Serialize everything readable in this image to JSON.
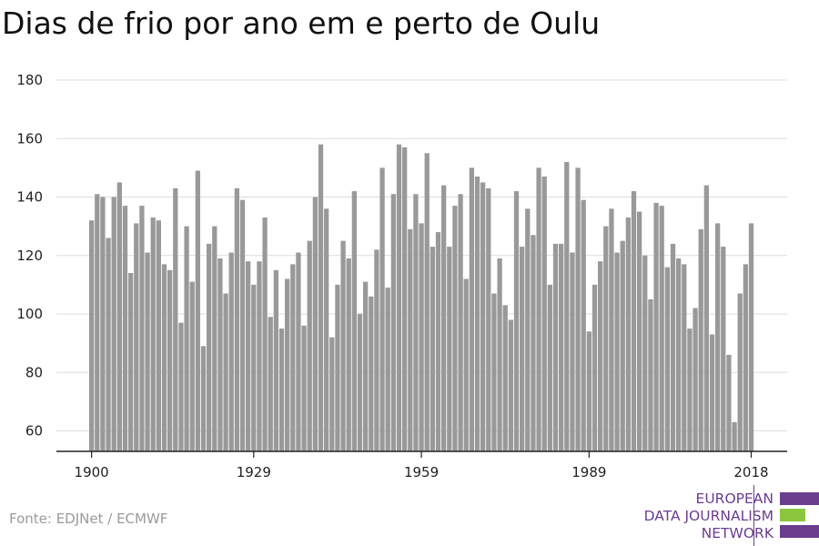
{
  "chart_data": {
    "type": "bar",
    "title": "Dias de frio por ano em e perto de Oulu",
    "xlabel": "",
    "ylabel": "",
    "x_start": 1900,
    "x_end": 2018,
    "x_ticks": [
      "1900",
      "1929",
      "1959",
      "1989",
      "2018"
    ],
    "y_ticks": [
      "60",
      "80",
      "100",
      "120",
      "140",
      "160",
      "180"
    ],
    "ylim": [
      53,
      180
    ],
    "grid": true,
    "bar_color": "#999999",
    "values": [
      132,
      141,
      140,
      126,
      140,
      145,
      137,
      114,
      131,
      137,
      121,
      133,
      132,
      117,
      115,
      143,
      97,
      130,
      111,
      149,
      89,
      124,
      130,
      119,
      107,
      121,
      143,
      139,
      118,
      110,
      118,
      133,
      99,
      115,
      95,
      112,
      117,
      121,
      96,
      125,
      140,
      158,
      136,
      92,
      110,
      125,
      119,
      142,
      100,
      111,
      106,
      122,
      150,
      109,
      141,
      158,
      157,
      129,
      141,
      131,
      155,
      123,
      128,
      144,
      123,
      137,
      141,
      112,
      150,
      147,
      145,
      143,
      107,
      119,
      103,
      98,
      142,
      123,
      136,
      127,
      150,
      147,
      110,
      124,
      124,
      152,
      121,
      150,
      139,
      94,
      110,
      118,
      130,
      136,
      121,
      125,
      133,
      142,
      135,
      120,
      105,
      138,
      137,
      116,
      124,
      119,
      117,
      95,
      102,
      129,
      144,
      93,
      131,
      123,
      86,
      63,
      107,
      117,
      131
    ]
  },
  "source": "Fonte: EDJNet / ECMWF",
  "logo": {
    "line1": "EUROPEAN",
    "line2": "DATA JOURNALISM",
    "line3": "NETWORK",
    "purple": "#6b3d8f",
    "green": "#8cc63f"
  }
}
